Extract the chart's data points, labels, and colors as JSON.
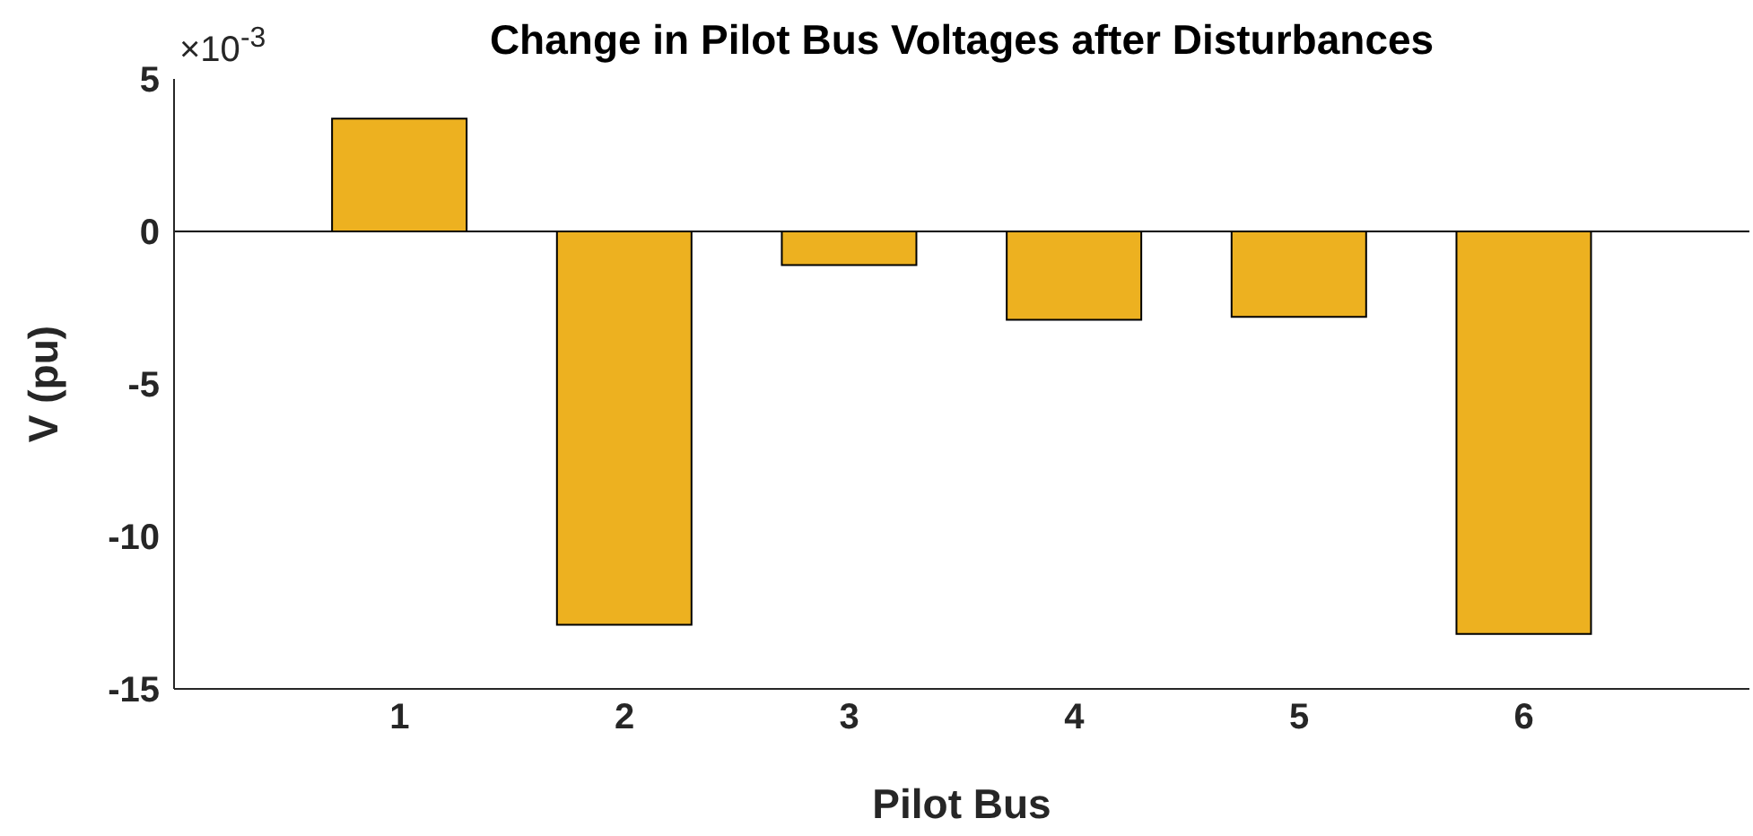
{
  "chart_data": {
    "type": "bar",
    "title": "Change in Pilot Bus Voltages after Disturbances",
    "xlabel": "Pilot Bus",
    "ylabel": "V (pu)",
    "annotations": [
      "×10$^{-3}$"
    ],
    "categories": [
      "1",
      "2",
      "3",
      "4",
      "5",
      "6"
    ],
    "values": [
      3.7,
      -12.9,
      -1.1,
      -2.9,
      -2.8,
      -13.2
    ],
    "color": "#edb120",
    "ylim": [
      -15,
      5
    ],
    "yticks": [
      -15,
      -10,
      -5,
      0,
      5
    ]
  }
}
